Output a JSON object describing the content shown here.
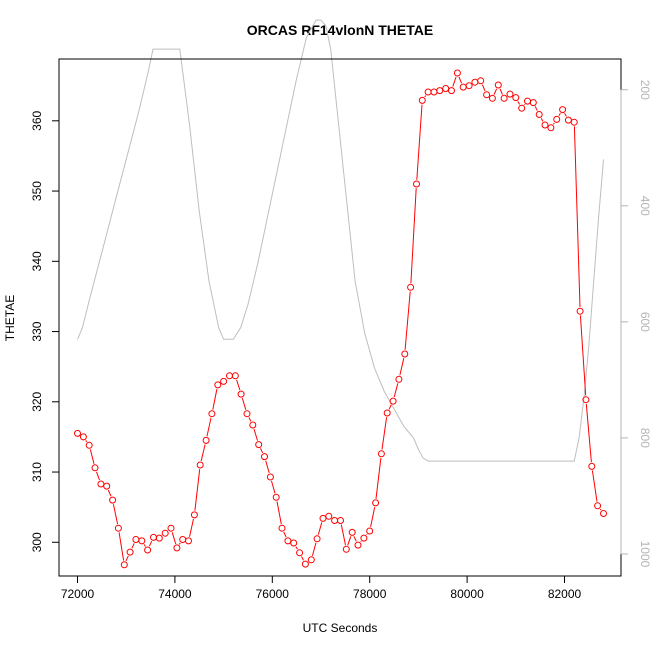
{
  "chart_data": {
    "type": "line",
    "title": "ORCAS RF14vlonN THETAE",
    "xlabel": "UTC Seconds",
    "ylabel": "THETAE",
    "xlim": [
      71620,
      83160
    ],
    "ylim": [
      295.2,
      368.8
    ],
    "x_ticks": [
      72000,
      74000,
      76000,
      78000,
      80000,
      82000
    ],
    "y_ticks": [
      300,
      310,
      320,
      330,
      340,
      350,
      360
    ],
    "y2_ticks": [
      200,
      400,
      600,
      800,
      1000
    ],
    "y2_reversed": true,
    "y2_range": [
      1038,
      147
    ],
    "grid": false,
    "legend": "none",
    "colors": {
      "primary": "#ff0000",
      "secondary": "#bebebe",
      "axis": "#000000",
      "right_axis": "#b4b4b4"
    },
    "series": [
      {
        "style": "points-and-lines",
        "x": [
          72000,
          72120,
          72240,
          72360,
          72480,
          72600,
          72720,
          72840,
          72960,
          73080,
          73200,
          73320,
          73440,
          73560,
          73680,
          73800,
          73920,
          74040,
          74160,
          74280,
          74400,
          74520,
          74640,
          74760,
          74880,
          75000,
          75120,
          75240,
          75360,
          75480,
          75600,
          75720,
          75840,
          75960,
          76080,
          76200,
          76320,
          76440,
          76560,
          76680,
          76800,
          76920,
          77040,
          77160,
          77280,
          77400,
          77520,
          77640,
          77760,
          77880,
          78000,
          78120,
          78240,
          78360,
          78480,
          78600,
          78720,
          78840,
          78960,
          79080,
          79200,
          79320,
          79440,
          79560,
          79680,
          79800,
          79920,
          80040,
          80160,
          80280,
          80400,
          80520,
          80640,
          80760,
          80880,
          81000,
          81120,
          81240,
          81360,
          81480,
          81600,
          81720,
          81840,
          81960,
          82080,
          82200,
          82320,
          82440,
          82560,
          82680,
          82800
        ],
        "values": [
          315.5,
          315.0,
          313.8,
          310.6,
          308.3,
          308.0,
          306.0,
          302.0,
          296.8,
          298.6,
          300.4,
          300.2,
          298.9,
          300.7,
          300.6,
          301.3,
          302.0,
          299.2,
          300.4,
          300.2,
          303.9,
          311.0,
          314.5,
          318.3,
          322.4,
          322.9,
          323.7,
          323.7,
          321.1,
          318.3,
          316.7,
          313.9,
          312.2,
          309.3,
          306.4,
          302.0,
          300.2,
          299.9,
          298.5,
          296.9,
          297.5,
          300.5,
          303.4,
          303.7,
          303.1,
          303.1,
          299.0,
          301.4,
          299.6,
          300.6,
          301.6,
          305.6,
          312.6,
          318.4,
          320.1,
          323.2,
          326.8,
          336.3,
          351.0,
          362.9,
          364.1,
          364.1,
          364.3,
          364.6,
          364.3,
          366.8,
          364.8,
          365.0,
          365.5,
          365.7,
          363.7,
          363.2,
          365.1,
          363.2,
          363.8,
          363.3,
          361.8,
          362.8,
          362.6,
          360.9,
          359.4,
          359.0,
          360.2,
          361.6,
          360.1,
          359.8,
          332.9,
          320.3,
          310.8,
          305.2,
          304.1
        ]
      },
      {
        "style": "line",
        "axis": "right",
        "x": [
          72000,
          72100,
          72250,
          72500,
          72750,
          73000,
          73250,
          73450,
          73500,
          73550,
          74100,
          74300,
          74500,
          74700,
          74900,
          75000,
          75200,
          75350,
          75500,
          75700,
          75900,
          76100,
          76300,
          76500,
          76700,
          76900,
          77000,
          77100,
          77200,
          77700,
          77900,
          78100,
          78300,
          78500,
          78700,
          78800,
          78900,
          79000,
          79100,
          79200,
          79500,
          80000,
          80500,
          81000,
          81500,
          82000,
          82200,
          82300,
          82400,
          82500,
          82600,
          82700,
          82800
        ],
        "values": [
          630,
          610,
          560,
          480,
          400,
          320,
          240,
          170,
          150,
          130,
          130,
          260,
          410,
          530,
          610,
          630,
          630,
          610,
          570,
          500,
          420,
          340,
          260,
          180,
          110,
          80,
          80,
          90,
          130,
          530,
          620,
          680,
          720,
          750,
          780,
          790,
          800,
          820,
          835,
          840,
          840,
          840,
          840,
          840,
          840,
          840,
          840,
          800,
          730,
          640,
          530,
          420,
          320
        ]
      }
    ]
  }
}
